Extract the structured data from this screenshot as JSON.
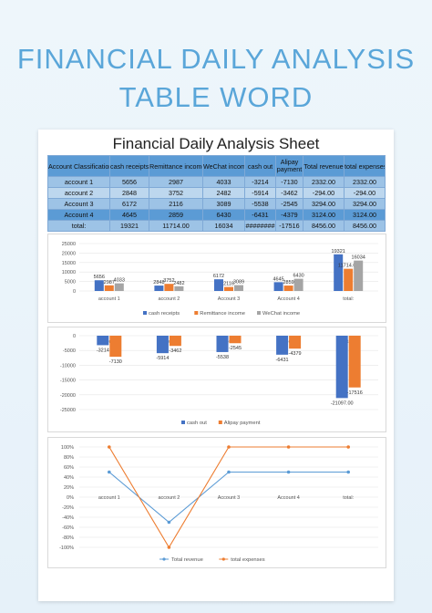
{
  "hero": {
    "title_line1": "FINANCIAL DAILY ANALYSIS",
    "title_line2": "TABLE WORD"
  },
  "sheet": {
    "title": "Financial Daily Analysis Sheet",
    "headers": [
      "Account Classification",
      "cash receipts",
      "Remittance income",
      "WeChat income",
      "cash out",
      "Alipay payment",
      "Total revenue",
      "total expenses"
    ],
    "rows": [
      [
        "account 1",
        "5656",
        "2987",
        "4033",
        "-3214",
        "-7130",
        "2332.00",
        "2332.00"
      ],
      [
        "account 2",
        "2848",
        "3752",
        "2482",
        "-5914",
        "-3462",
        "-294.00",
        "-294.00"
      ],
      [
        "Account 3",
        "6172",
        "2116",
        "3089",
        "-5538",
        "-2545",
        "3294.00",
        "3294.00"
      ],
      [
        "Account 4",
        "4645",
        "2859",
        "6430",
        "-6431",
        "-4379",
        "3124.00",
        "3124.00"
      ],
      [
        "total:",
        "19321",
        "11714.00",
        "16034",
        "########",
        "-17516",
        "8456.00",
        "8456.00"
      ]
    ]
  },
  "chart_data": [
    {
      "type": "bar",
      "categories": [
        "account 1",
        "account 2",
        "Account 3",
        "Account 4",
        "total:"
      ],
      "series": [
        {
          "name": "cash receipts",
          "color": "#4472c4",
          "values": [
            5656,
            2848,
            6172,
            4645,
            19321
          ]
        },
        {
          "name": "Remittance income",
          "color": "#ed7d31",
          "values": [
            2987,
            3752,
            2116,
            2859,
            11714
          ]
        },
        {
          "name": "WeChat income",
          "color": "#a5a5a5",
          "values": [
            4033,
            2482,
            3089,
            6430,
            16034
          ]
        }
      ],
      "data_labels": [
        [
          "5656",
          "2848",
          "6172",
          "4645",
          "19321"
        ],
        [
          "2987",
          "3752",
          "2116",
          "2859",
          "11714.00"
        ],
        [
          "4033",
          "2482",
          "3089",
          "6430",
          "16034"
        ]
      ],
      "yticks": [
        "0",
        "5000",
        "10000",
        "15000",
        "20000",
        "25000"
      ],
      "ylim": [
        0,
        25000
      ]
    },
    {
      "type": "bar",
      "categories": [
        "account 1",
        "account 2",
        "Account 3",
        "Account 4",
        "total:"
      ],
      "series": [
        {
          "name": "cash out",
          "color": "#4472c4",
          "values": [
            -3214,
            -5914,
            -5538,
            -6431,
            -21097
          ]
        },
        {
          "name": "Alipay payment",
          "color": "#ed7d31",
          "values": [
            -7130,
            -3462,
            -2545,
            -4379,
            -17516
          ]
        }
      ],
      "data_labels": [
        [
          "-3214",
          "-5914",
          "-5538",
          "-6431",
          "-21097.00"
        ],
        [
          "-7130",
          "-3462",
          "-2545",
          "-4379",
          "-17516"
        ]
      ],
      "yticks": [
        "0",
        "-5000",
        "-10000",
        "-15000",
        "-20000",
        "-25000"
      ],
      "ylim": [
        -25000,
        0
      ]
    },
    {
      "type": "line",
      "categories": [
        "account 1",
        "account 2",
        "Account 3",
        "Account 4",
        "total:"
      ],
      "series": [
        {
          "name": "Total revenue",
          "color": "#5b9bd5",
          "values": [
            50,
            -50,
            50,
            50,
            50
          ]
        },
        {
          "name": "total expenses",
          "color": "#ed7d31",
          "values": [
            100,
            -100,
            100,
            100,
            100
          ]
        }
      ],
      "yticks": [
        "100%",
        "80%",
        "60%",
        "40%",
        "20%",
        "0%",
        "-20%",
        "-40%",
        "-60%",
        "-80%",
        "-100%"
      ],
      "ylim": [
        -100,
        100
      ]
    }
  ]
}
